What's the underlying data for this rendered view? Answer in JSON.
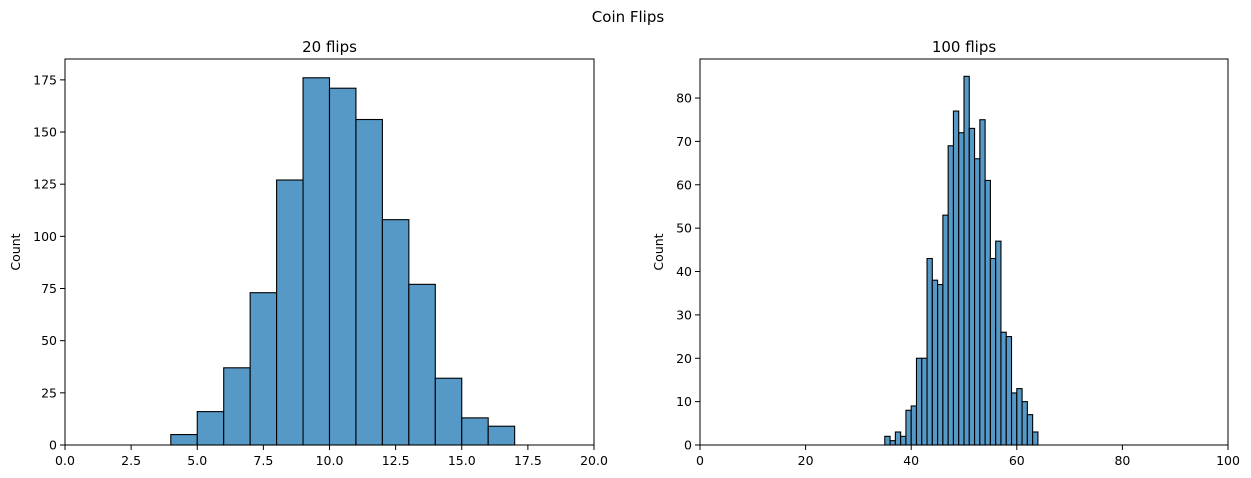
{
  "figure_title": "Coin Flips",
  "chart_data": [
    {
      "type": "bar",
      "subtype": "histogram",
      "title": "20 flips",
      "xlabel": "",
      "ylabel": "Count",
      "xlim": [
        0,
        20
      ],
      "ylim": [
        0,
        185
      ],
      "xticks": [
        0,
        2.5,
        5,
        7.5,
        10,
        12.5,
        15,
        17.5,
        20
      ],
      "xtick_labels": [
        "0.0",
        "2.5",
        "5.0",
        "7.5",
        "10.0",
        "12.5",
        "15.0",
        "17.5",
        "20.0"
      ],
      "yticks": [
        0,
        25,
        50,
        75,
        100,
        125,
        150,
        175
      ],
      "ytick_labels": [
        "0",
        "25",
        "50",
        "75",
        "100",
        "125",
        "150",
        "175"
      ],
      "bin_width": 1,
      "bins_start": [
        4,
        5,
        6,
        7,
        8,
        9,
        10,
        11,
        12,
        13,
        14,
        15,
        16
      ],
      "values": [
        5,
        16,
        37,
        73,
        127,
        176,
        171,
        156,
        108,
        77,
        32,
        13,
        9
      ],
      "color": "#5698c6",
      "grid": false
    },
    {
      "type": "bar",
      "subtype": "histogram",
      "title": "100 flips",
      "xlabel": "",
      "ylabel": "Count",
      "xlim": [
        0,
        100
      ],
      "ylim": [
        0,
        89
      ],
      "xticks": [
        0,
        20,
        40,
        60,
        80,
        100
      ],
      "xtick_labels": [
        "0",
        "20",
        "40",
        "60",
        "80",
        "100"
      ],
      "yticks": [
        0,
        10,
        20,
        30,
        40,
        50,
        60,
        70,
        80
      ],
      "ytick_labels": [
        "0",
        "10",
        "20",
        "30",
        "40",
        "50",
        "60",
        "70",
        "80"
      ],
      "bin_width": 1,
      "bins_start": [
        35,
        36,
        37,
        38,
        39,
        40,
        41,
        42,
        43,
        44,
        45,
        46,
        47,
        48,
        49,
        50,
        51,
        52,
        53,
        54,
        55,
        56,
        57,
        58,
        59,
        60,
        61,
        62,
        63
      ],
      "values": [
        2,
        1,
        3,
        2,
        8,
        9,
        20,
        20,
        43,
        38,
        37,
        53,
        69,
        77,
        72,
        85,
        73,
        66,
        75,
        61,
        43,
        47,
        26,
        25,
        12,
        13,
        10,
        7,
        3
      ],
      "color": "#5698c6",
      "grid": false
    }
  ]
}
